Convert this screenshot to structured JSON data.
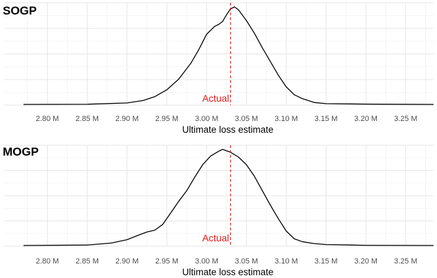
{
  "chart_data": [
    {
      "type": "area",
      "title": "SOGP",
      "xlabel": "Ultimate loss estimate",
      "ylabel": "",
      "xlim": [
        2770000,
        3285000
      ],
      "x_ticks": [
        2800000,
        2850000,
        2900000,
        2950000,
        3000000,
        3050000,
        3100000,
        3150000,
        3200000,
        3250000
      ],
      "x_tick_labels": [
        "2.80 M",
        "2.85 M",
        "2.90 M",
        "2.95 M",
        "3.00 M",
        "3.05 M",
        "3.10 M",
        "3.15 M",
        "3.20 M",
        "3.25 M"
      ],
      "grid": true,
      "reference_line": {
        "x": 3030000,
        "label": "Actual",
        "color": "#e31a1c",
        "style": "dashed"
      },
      "series": [
        {
          "x": [
            2770000,
            2850000,
            2900000,
            2920000,
            2935000,
            2950000,
            2965000,
            2980000,
            2990000,
            3000000,
            3010000,
            3015000,
            3020000,
            3025000,
            3030000,
            3035000,
            3040000,
            3050000,
            3060000,
            3070000,
            3080000,
            3090000,
            3100000,
            3110000,
            3120000,
            3135000,
            3150000,
            3200000,
            3285000
          ],
          "y": [
            0.0,
            0.002,
            0.015,
            0.04,
            0.08,
            0.15,
            0.26,
            0.42,
            0.56,
            0.72,
            0.8,
            0.82,
            0.85,
            0.92,
            0.98,
            1.0,
            0.97,
            0.86,
            0.73,
            0.58,
            0.44,
            0.3,
            0.18,
            0.1,
            0.06,
            0.02,
            0.008,
            0.003,
            0.0
          ]
        }
      ]
    },
    {
      "type": "area",
      "title": "MOGP",
      "xlabel": "Ultimate loss estimate",
      "ylabel": "",
      "xlim": [
        2770000,
        3285000
      ],
      "x_ticks": [
        2800000,
        2850000,
        2900000,
        2950000,
        3000000,
        3050000,
        3100000,
        3150000,
        3200000,
        3250000
      ],
      "x_tick_labels": [
        "2.80 M",
        "2.85 M",
        "2.90 M",
        "2.95 M",
        "3.00 M",
        "3.05 M",
        "3.10 M",
        "3.15 M",
        "3.20 M",
        "3.25 M"
      ],
      "grid": true,
      "reference_line": {
        "x": 3030000,
        "label": "Actual",
        "color": "#e31a1c",
        "style": "dashed"
      },
      "series": [
        {
          "x": [
            2770000,
            2850000,
            2880000,
            2900000,
            2915000,
            2925000,
            2935000,
            2945000,
            2955000,
            2965000,
            2975000,
            2985000,
            2995000,
            3005000,
            3015000,
            3020000,
            3030000,
            3040000,
            3050000,
            3060000,
            3070000,
            3080000,
            3090000,
            3100000,
            3110000,
            3120000,
            3135000,
            3150000,
            3200000,
            3285000
          ],
          "y": [
            0.0,
            0.005,
            0.025,
            0.06,
            0.11,
            0.14,
            0.16,
            0.22,
            0.34,
            0.46,
            0.57,
            0.71,
            0.84,
            0.93,
            0.98,
            1.0,
            0.97,
            0.92,
            0.84,
            0.72,
            0.57,
            0.42,
            0.28,
            0.15,
            0.07,
            0.04,
            0.02,
            0.01,
            0.002,
            0.0
          ]
        }
      ]
    }
  ]
}
